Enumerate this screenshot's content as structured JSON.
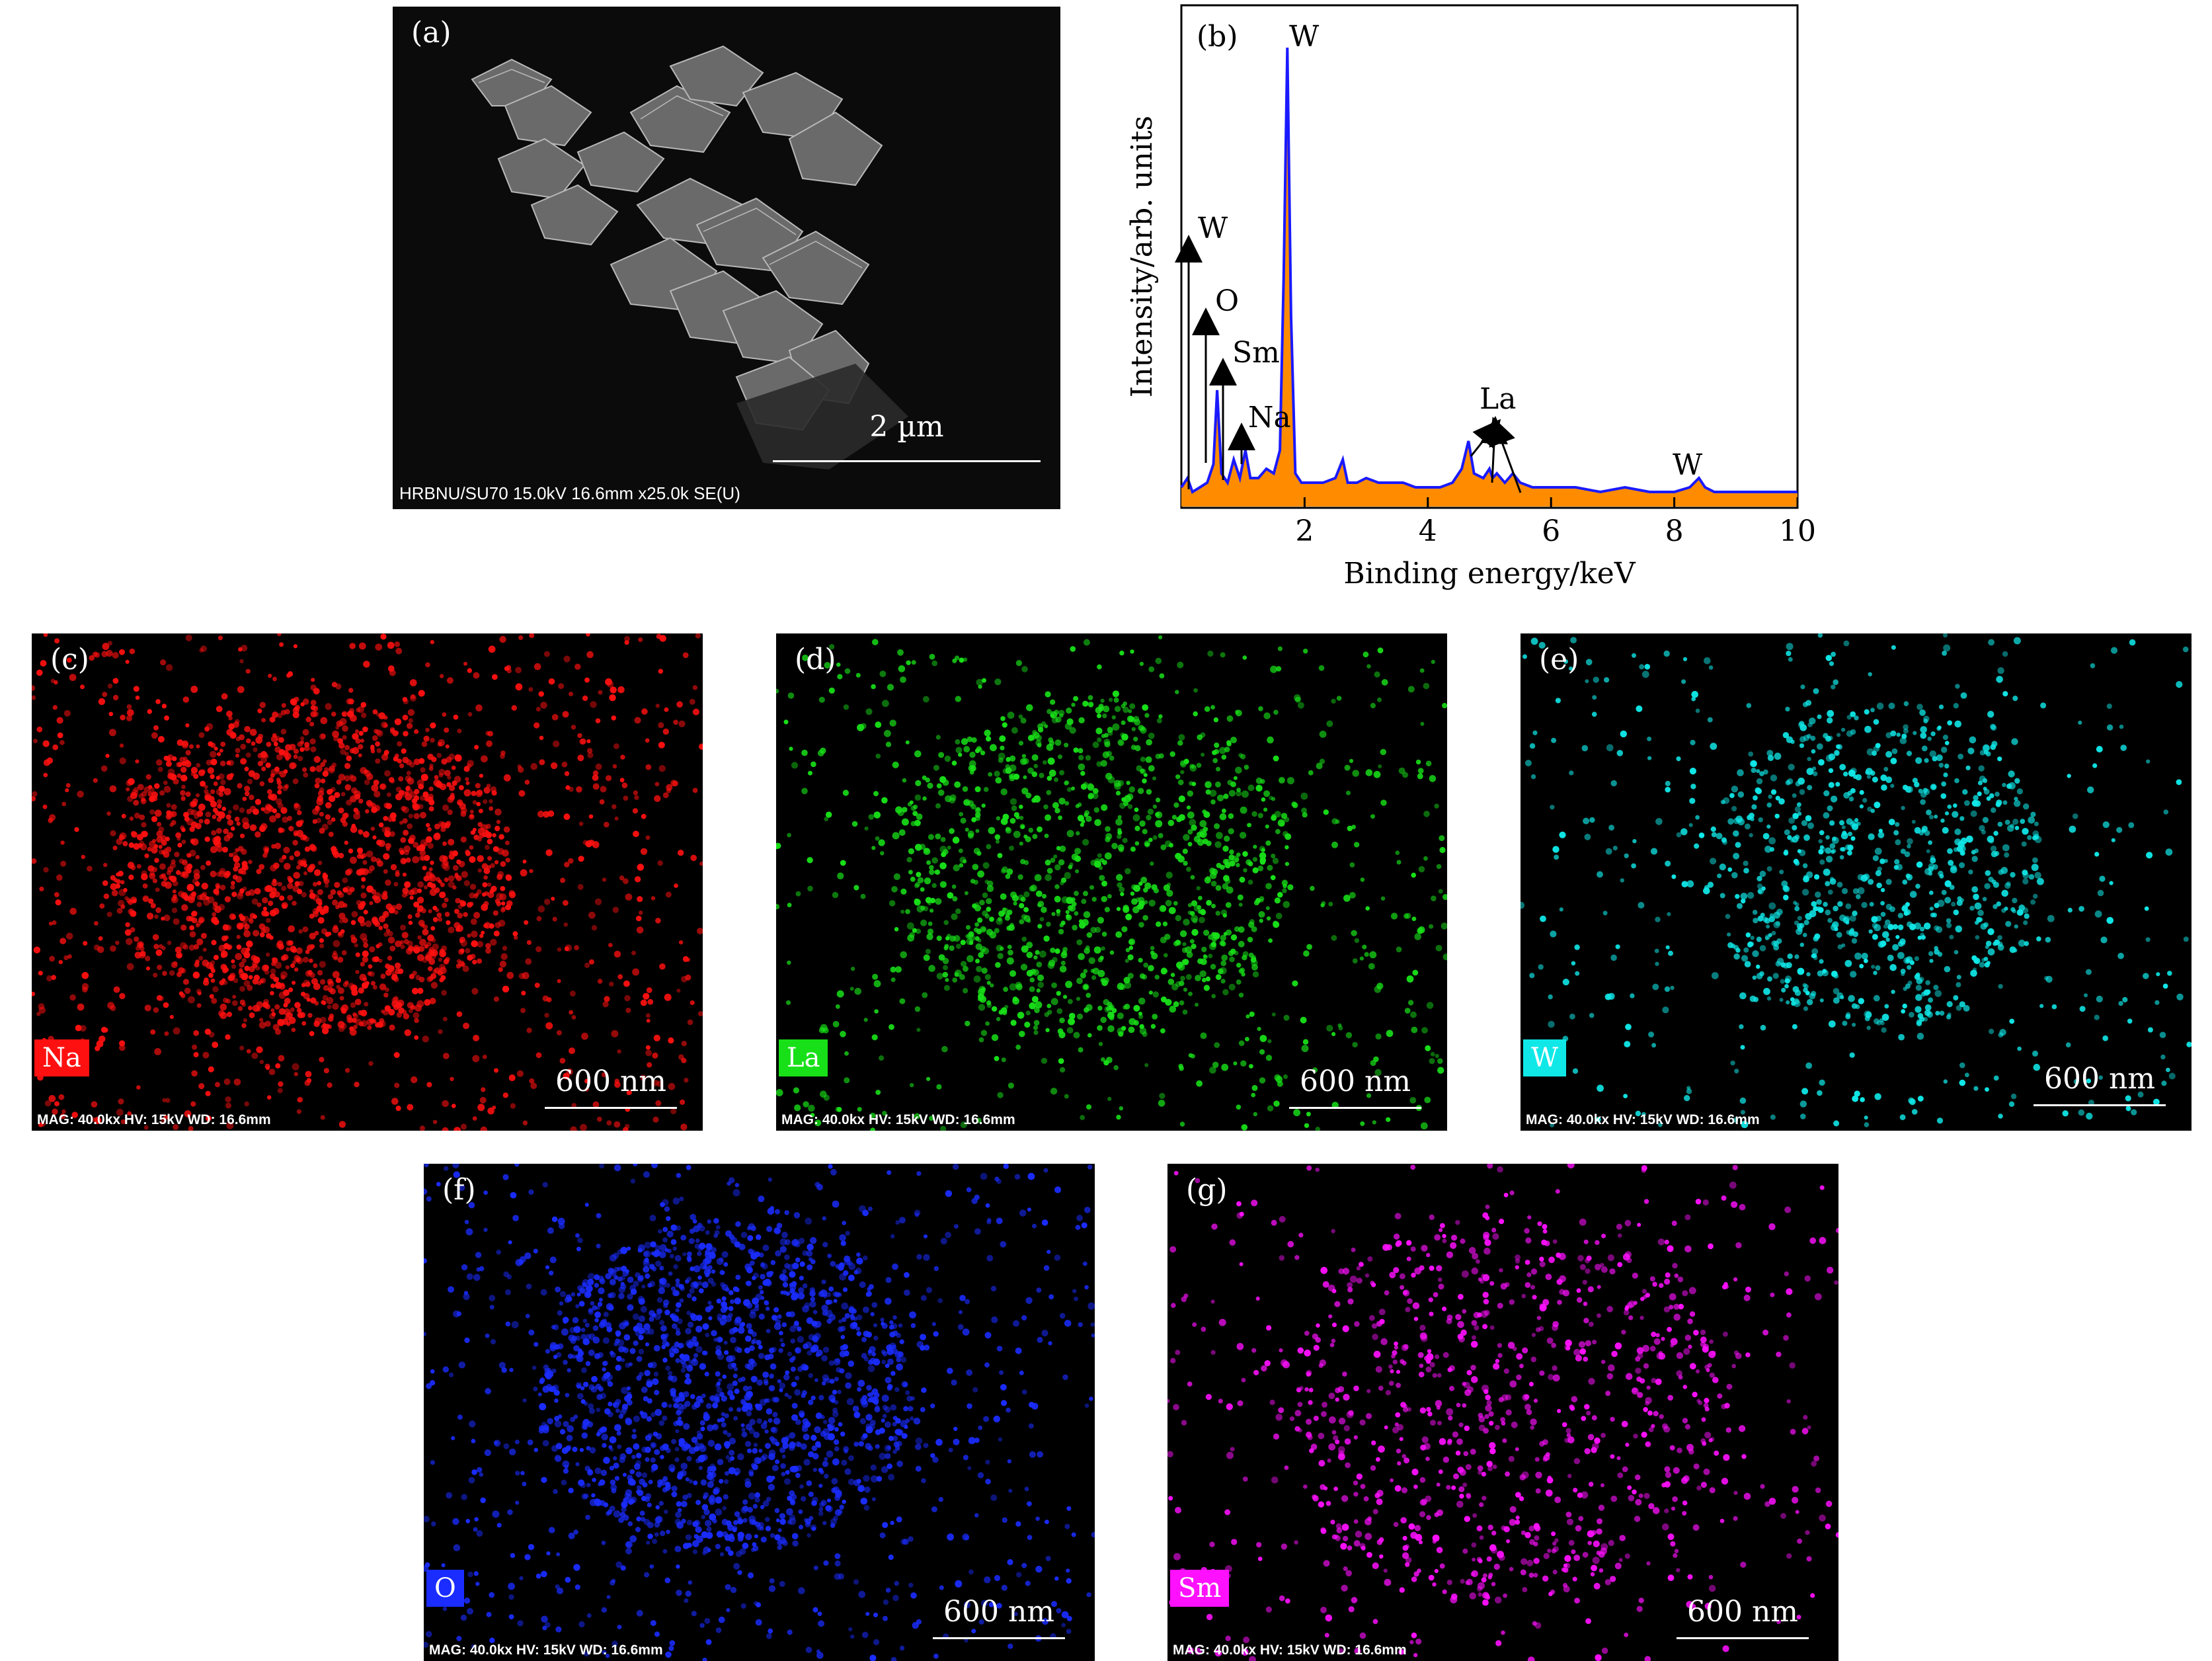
{
  "panels": {
    "a": {
      "label": "(a)",
      "scale_text": "2 µm",
      "info": "HRBNU/SU70 15.0kV 16.6mm x25.0k SE(U)"
    },
    "c": {
      "label": "(c)",
      "element": "Na",
      "color": "#ff1010",
      "scale_text": "600 nm",
      "info": "MAG: 40.0kx HV: 15kV  WD: 16.6mm"
    },
    "d": {
      "label": "(d)",
      "element": "La",
      "color": "#18e018",
      "scale_text": "600 nm",
      "info": "MAG: 40.0kx HV: 15kV  WD: 16.6mm"
    },
    "e": {
      "label": "(e)",
      "element": "W",
      "color": "#10e8e8",
      "scale_text": "600 nm",
      "info": "MAG: 40.0kx HV: 15kV  WD: 16.6mm"
    },
    "f": {
      "label": "(f)",
      "element": "O",
      "color": "#1a2cff",
      "scale_text": "600 nm",
      "info": "MAG: 40.0kx HV: 15kV  WD: 16.6mm"
    },
    "g": {
      "label": "(g)",
      "element": "Sm",
      "color": "#ff10ff",
      "scale_text": "600 nm",
      "info": "MAG: 40.0kx HV: 15kV  WD: 16.6mm"
    }
  },
  "chart_data": {
    "type": "line",
    "panel_label": "(b)",
    "xlabel": "Binding energy/keV",
    "ylabel": "Intensity/arb. units",
    "xlim": [
      0,
      10
    ],
    "ylim": [
      0,
      100
    ],
    "xticks": [
      2,
      4,
      6,
      8,
      10
    ],
    "grid": false,
    "series": [
      {
        "color": "#1a1aff",
        "fill": "#ff8c00",
        "x": [
          0,
          0.1,
          0.18,
          0.3,
          0.42,
          0.52,
          0.58,
          0.65,
          0.75,
          0.85,
          0.95,
          1.04,
          1.12,
          1.25,
          1.38,
          1.5,
          1.6,
          1.66,
          1.72,
          1.78,
          1.85,
          1.95,
          2.1,
          2.3,
          2.5,
          2.62,
          2.7,
          2.85,
          3.0,
          3.2,
          3.4,
          3.6,
          3.8,
          4.0,
          4.2,
          4.4,
          4.55,
          4.66,
          4.75,
          4.9,
          5.0,
          5.05,
          5.12,
          5.25,
          5.38,
          5.5,
          5.7,
          6.0,
          6.4,
          6.8,
          7.2,
          7.6,
          8.0,
          8.25,
          8.4,
          8.5,
          8.65,
          8.9,
          9.2,
          9.6,
          10.0
        ],
        "y": [
          3,
          5,
          2,
          3,
          4,
          8,
          24,
          6,
          4,
          9,
          5,
          11,
          5,
          5,
          7,
          6,
          11,
          48,
          98,
          40,
          6,
          4,
          4,
          4,
          5,
          9,
          4,
          4,
          5,
          4,
          4,
          4,
          3,
          3,
          3,
          4,
          7,
          13,
          6,
          5,
          7,
          5,
          6,
          4,
          6,
          4,
          3,
          3,
          3,
          2,
          3,
          2,
          2,
          3,
          5,
          3,
          2,
          2,
          2,
          2,
          2
        ]
      }
    ],
    "annotations": [
      {
        "text": "W",
        "x": 1.72,
        "y": 98
      },
      {
        "text": "W",
        "x": 0.0,
        "y": 55
      },
      {
        "text": "O",
        "x": 0.45,
        "y": 37
      },
      {
        "text": "Sm",
        "x": 0.7,
        "y": 26
      },
      {
        "text": "Na",
        "x": 0.95,
        "y": 14
      },
      {
        "text": "La",
        "x": 5.0,
        "y": 18
      },
      {
        "text": "W",
        "x": 8.4,
        "y": 6
      }
    ]
  }
}
